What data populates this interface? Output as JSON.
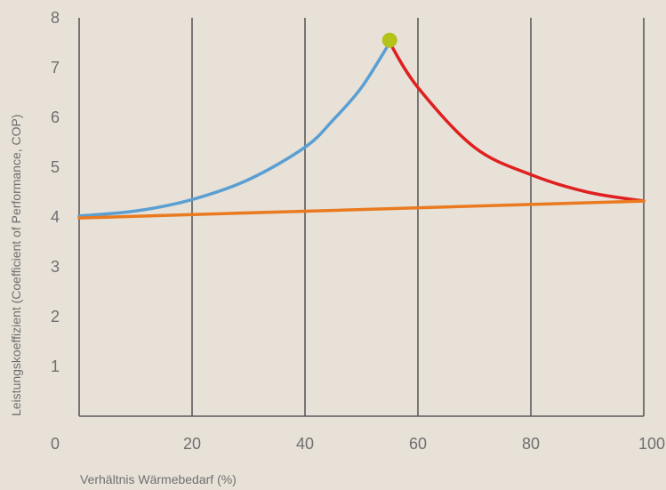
{
  "chart_data": {
    "type": "line",
    "xlabel": "Verhältnis Wärmebedarf (%)",
    "ylabel": "Leistungskoeffizient (Coefficient of Performance, COP)",
    "xlim": [
      0,
      100
    ],
    "ylim": [
      0,
      8
    ],
    "x_ticks": [
      0,
      20,
      40,
      60,
      80,
      100
    ],
    "x_tick_labels": [
      "0",
      "20",
      "40",
      "60",
      "80",
      "100"
    ],
    "y_ticks": [
      1,
      2,
      3,
      4,
      5,
      6,
      7,
      8
    ],
    "y_tick_labels": [
      "1",
      "2",
      "3",
      "4",
      "5",
      "6",
      "7",
      "8"
    ],
    "vertical_grid": true,
    "horizontal_grid": false,
    "series": [
      {
        "color": "#5b9fd2",
        "x": [
          0,
          10,
          20,
          30,
          40,
          45,
          50,
          55
        ],
        "y": [
          4.02,
          4.12,
          4.35,
          4.75,
          5.4,
          5.95,
          6.6,
          7.5
        ]
      },
      {
        "color": "#e02020",
        "x": [
          55,
          60,
          70,
          80,
          90,
          100
        ],
        "y": [
          7.5,
          6.6,
          5.4,
          4.85,
          4.5,
          4.32
        ]
      },
      {
        "color": "#ea7a1f",
        "x": [
          0,
          100
        ],
        "y": [
          3.98,
          4.32
        ]
      }
    ],
    "markers": [
      {
        "x": 55,
        "y": 7.55,
        "color": "#b5c21a"
      }
    ]
  }
}
